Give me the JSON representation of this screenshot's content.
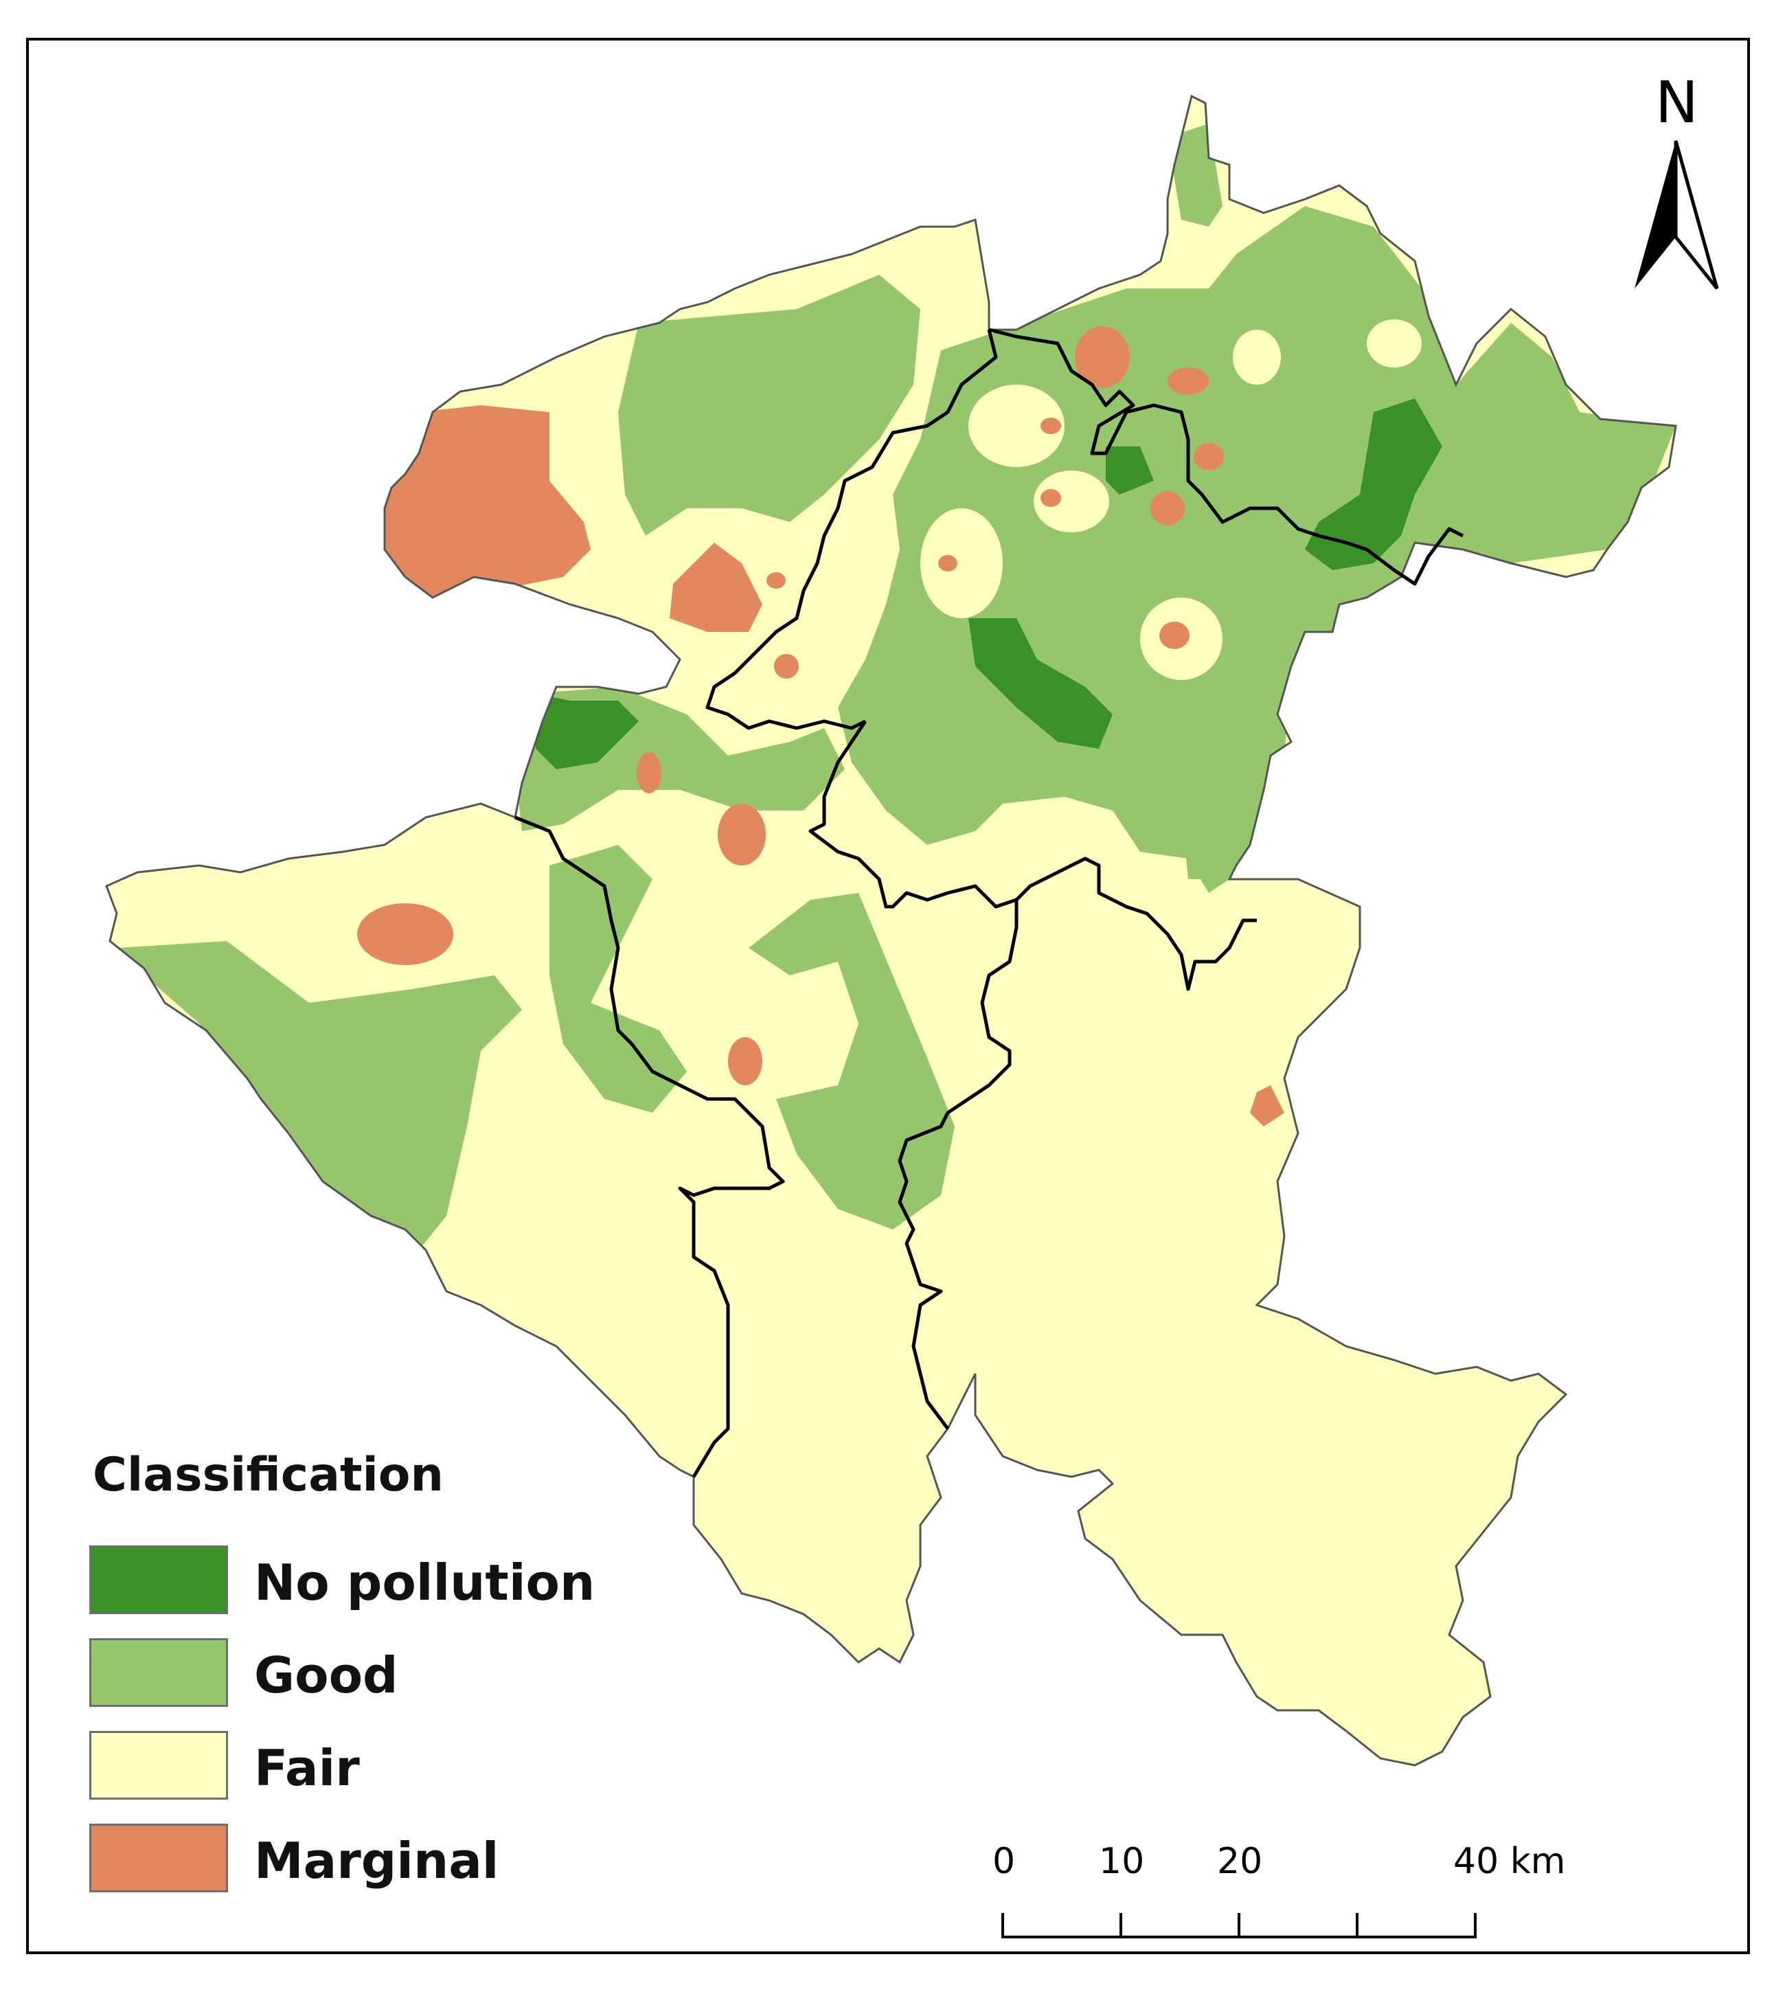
{
  "legend": {
    "title": "Classification",
    "items": [
      {
        "label": "No pollution",
        "color": "#3a9126"
      },
      {
        "label": "Good",
        "color": "#96c66b"
      },
      {
        "label": "Fair",
        "color": "#ffffc0"
      },
      {
        "label": "Marginal",
        "color": "#e3875e"
      }
    ]
  },
  "north_arrow": {
    "letter": "N"
  },
  "scale_bar": {
    "labels": [
      "0",
      "10",
      "20",
      "40 km"
    ]
  },
  "colors": {
    "boundary": "#000000",
    "outline": "#555555"
  }
}
